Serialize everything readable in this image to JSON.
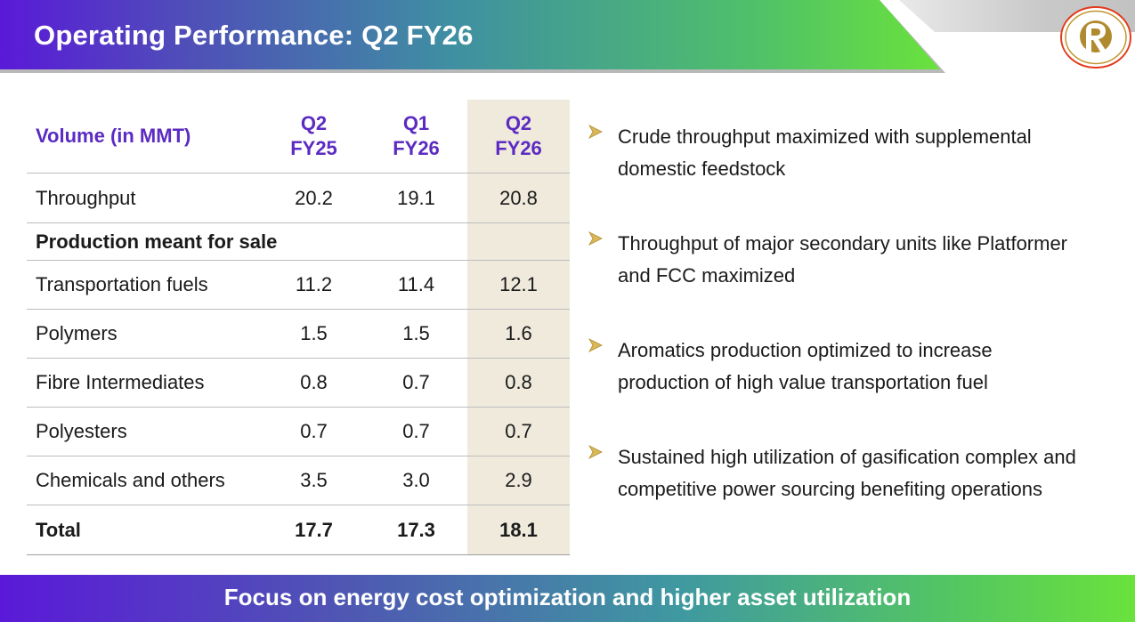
{
  "header": {
    "title": "Operating Performance: Q2 FY26",
    "colors": {
      "gradient_start": "#5a19d8",
      "gradient_end": "#6ae23c",
      "logo_gold": "#b08a2e",
      "logo_ring": "#e23a1c"
    }
  },
  "table": {
    "header": {
      "label": "Volume (in MMT)",
      "col1": {
        "line1": "Q2",
        "line2": "FY25"
      },
      "col2": {
        "line1": "Q1",
        "line2": "FY26"
      },
      "col3": {
        "line1": "Q2",
        "line2": "FY26"
      }
    },
    "throughput": {
      "label": "Throughput",
      "v1": "20.2",
      "v2": "19.1",
      "v3": "20.8"
    },
    "section_label": "Production meant for sale",
    "rows": [
      {
        "label": "Transportation fuels",
        "v1": "11.2",
        "v2": "11.4",
        "v3": "12.1"
      },
      {
        "label": "Polymers",
        "v1": "1.5",
        "v2": "1.5",
        "v3": "1.6"
      },
      {
        "label": "Fibre Intermediates",
        "v1": "0.8",
        "v2": "0.7",
        "v3": "0.8"
      },
      {
        "label": "Polyesters",
        "v1": "0.7",
        "v2": "0.7",
        "v3": "0.7"
      },
      {
        "label": "Chemicals and others",
        "v1": "3.5",
        "v2": "3.0",
        "v3": "2.9"
      }
    ],
    "total": {
      "label": "Total",
      "v1": "17.7",
      "v2": "17.3",
      "v3": "18.1"
    },
    "highlight_color": "#efeadc"
  },
  "bullets": [
    {
      "line1": "Crude throughput maximized with supplemental",
      "line2": "domestic feedstock"
    },
    {
      "line1": "Throughput of major secondary units like Platformer",
      "line2": "and FCC maximized"
    },
    {
      "line1": "Aromatics production optimized to increase",
      "line2": "production of high value transportation fuel"
    },
    {
      "line1": "Sustained high utilization of gasification complex and",
      "line2": "competitive power sourcing benefiting operations"
    }
  ],
  "bullet_icon": "arrow-bullet-icon",
  "footer": {
    "text": "Focus on energy cost optimization and higher asset utilization"
  }
}
